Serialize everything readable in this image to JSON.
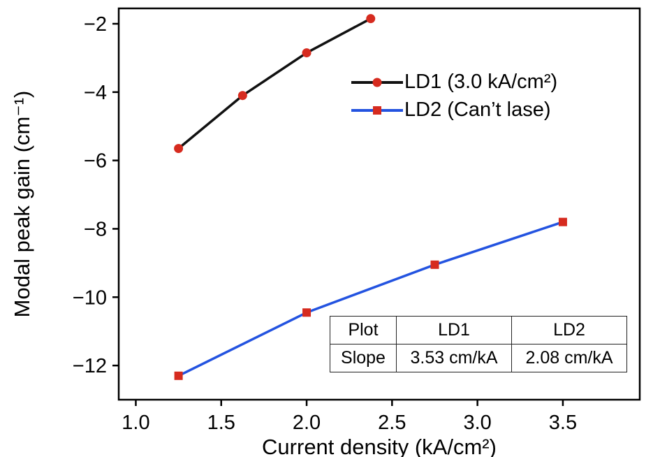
{
  "chart_data": {
    "type": "line",
    "title": "",
    "xlabel": "Current density (kA/cm²)",
    "ylabel": "Modal peak gain (cm⁻¹)",
    "xlim": [
      0.9,
      3.95
    ],
    "ylim": [
      -13.0,
      -1.55
    ],
    "xticks": [
      1.0,
      1.5,
      2.0,
      2.5,
      3.0,
      3.5
    ],
    "xtick_labels": [
      "1.0",
      "1.5",
      "2.0",
      "2.5",
      "3.0",
      "3.5"
    ],
    "yticks": [
      -2,
      -4,
      -6,
      -8,
      -10,
      -12
    ],
    "ytick_labels": [
      "−2",
      "−4",
      "−6",
      "−8",
      "−10",
      "−12"
    ],
    "grid": false,
    "legend_position": "upper-right-inside",
    "frame_color": "#000000",
    "series": [
      {
        "name": "LD1 (3.0 kA/cm²)",
        "color": "#111111",
        "marker": "circle",
        "marker_color": "#d62b1f",
        "x": [
          1.25,
          1.625,
          2.0,
          2.375
        ],
        "y": [
          -5.65,
          -4.1,
          -2.85,
          -1.85
        ]
      },
      {
        "name": "LD2 (Can’t lase)",
        "color": "#2353e0",
        "marker": "square",
        "marker_color": "#d62b1f",
        "x": [
          1.25,
          2.0,
          2.75,
          3.5
        ],
        "y": [
          -12.3,
          -10.45,
          -9.05,
          -7.8
        ]
      }
    ]
  },
  "inset_table": {
    "headers": [
      "Plot",
      "LD1",
      "LD2"
    ],
    "rows": [
      [
        "Slope",
        "3.53 cm/kA",
        "2.08 cm/kA"
      ]
    ]
  }
}
